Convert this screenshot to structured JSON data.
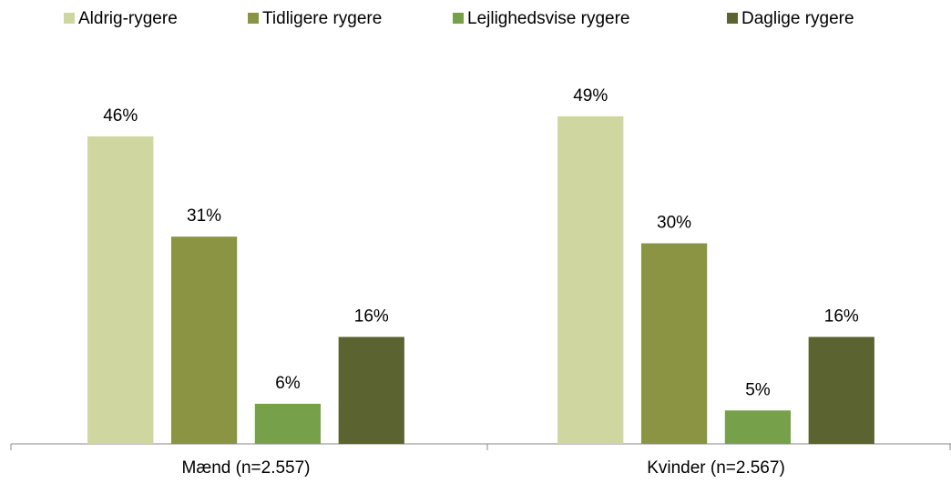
{
  "chart_data": {
    "type": "bar",
    "categories": [
      "Mænd (n=2.557)",
      "Kvinder (n=2.567)"
    ],
    "series": [
      {
        "name": "Aldrig-rygere",
        "color": "#d0d6a0",
        "values": [
          46,
          49
        ],
        "value_labels": [
          "46%",
          "49%"
        ]
      },
      {
        "name": "Tidligere rygere",
        "color": "#8a9443",
        "values": [
          31,
          30
        ],
        "value_labels": [
          "31%",
          "30%"
        ]
      },
      {
        "name": "Lejlighedsvise rygere",
        "color": "#76a04a",
        "values": [
          6,
          5
        ],
        "value_labels": [
          "6%",
          "5%"
        ]
      },
      {
        "name": "Daglige rygere",
        "color": "#5b6330",
        "values": [
          16,
          16
        ],
        "value_labels": [
          "16%",
          "16%"
        ]
      }
    ],
    "ylim": [
      0,
      60
    ],
    "legend": "top"
  }
}
